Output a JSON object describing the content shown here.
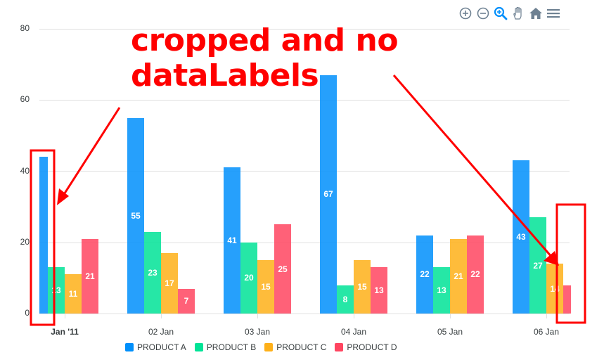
{
  "toolbar": {
    "icons": [
      "zoom-in-icon",
      "zoom-out-icon",
      "selection-zoom-icon",
      "pan-icon",
      "reset-home-icon",
      "menu-icon"
    ]
  },
  "annotation": {
    "line1": "cropped and no",
    "line2": "dataLabels",
    "color": "#ff0000"
  },
  "yaxis": {
    "ticks": [
      "80",
      "60",
      "40",
      "20",
      "0"
    ]
  },
  "xaxis": {
    "labels": [
      "Jan '11",
      "02 Jan",
      "03 Jan",
      "04 Jan",
      "05 Jan",
      "06 Jan"
    ]
  },
  "legend": {
    "items": [
      {
        "label": "PRODUCT A",
        "color": "#008FFB"
      },
      {
        "label": "PRODUCT B",
        "color": "#00E396"
      },
      {
        "label": "PRODUCT C",
        "color": "#FEB019"
      },
      {
        "label": "PRODUCT D",
        "color": "#FF4560"
      }
    ]
  },
  "chart_data": {
    "type": "bar",
    "title": "",
    "xlabel": "",
    "ylabel": "",
    "categories": [
      "Jan '11",
      "02 Jan",
      "03 Jan",
      "04 Jan",
      "05 Jan",
      "06 Jan"
    ],
    "series": [
      {
        "name": "PRODUCT A",
        "color": "#008FFB",
        "values": [
          44,
          55,
          41,
          67,
          22,
          43
        ]
      },
      {
        "name": "PRODUCT B",
        "color": "#00E396",
        "values": [
          13,
          23,
          20,
          8,
          13,
          27
        ]
      },
      {
        "name": "PRODUCT C",
        "color": "#FEB019",
        "values": [
          11,
          17,
          15,
          15,
          21,
          14
        ]
      },
      {
        "name": "PRODUCT D",
        "color": "#FF4560",
        "values": [
          21,
          7,
          25,
          13,
          22,
          8
        ]
      }
    ],
    "visible_data_labels": [
      [
        null,
        "55",
        "41",
        "67",
        "22",
        "43"
      ],
      [
        "13",
        "23",
        "20",
        "8",
        "13",
        "27"
      ],
      [
        "11",
        "17",
        "15",
        "15",
        "21",
        "14"
      ],
      [
        "21",
        "7",
        "25",
        "13",
        "22",
        null
      ]
    ],
    "ylim": [
      0,
      80
    ],
    "yticks": [
      0,
      20,
      40,
      60,
      80
    ],
    "grid": true,
    "legend_position": "bottom"
  }
}
